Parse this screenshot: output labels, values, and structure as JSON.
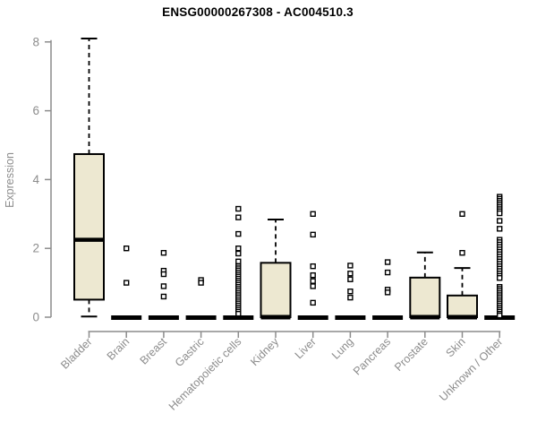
{
  "colors": {
    "box_fill": "#EDE8D1",
    "box_stroke": "#000000",
    "median": "#000000",
    "outlier_fill": "#FFFFFF",
    "outlier_stroke": "#000000",
    "axis_line": "#8C8C8C",
    "tick_label": "#8C8C8C",
    "title_color": "#000000"
  },
  "chart_data": {
    "type": "boxplot",
    "title": "ENSG00000267308 - AC004510.3",
    "xlabel": "",
    "ylabel": "Expression",
    "ylim": [
      0,
      8.2
    ],
    "yticks": [
      0,
      2,
      4,
      6,
      8
    ],
    "grid": false,
    "legend": "none",
    "categories": [
      "Bladder",
      "Brain",
      "Breast",
      "Gastric",
      "Hematopoietic cells",
      "Kidney",
      "Liver",
      "Lung",
      "Pancreas",
      "Prostate",
      "Skin",
      "Unknown / Other"
    ],
    "boxes": [
      {
        "category": "Bladder",
        "whisker_low": 0.02,
        "q1": 0.51,
        "median": 2.25,
        "q3": 4.74,
        "whisker_high": 8.1,
        "outliers": []
      },
      {
        "category": "Brain",
        "whisker_low": 0,
        "q1": 0,
        "median": 0,
        "q3": 0,
        "whisker_high": 0,
        "outliers": [
          2.0,
          1.0
        ]
      },
      {
        "category": "Breast",
        "whisker_low": 0,
        "q1": 0,
        "median": 0,
        "q3": 0,
        "whisker_high": 0,
        "outliers": [
          1.87,
          1.35,
          1.25,
          0.9,
          0.6
        ]
      },
      {
        "category": "Gastric",
        "whisker_low": 0,
        "q1": 0,
        "median": 0,
        "q3": 0,
        "whisker_high": 0,
        "outliers": [
          1.08,
          1.0
        ]
      },
      {
        "category": "Hematopoietic cells",
        "whisker_low": 0,
        "q1": 0,
        "median": 0,
        "q3": 0,
        "whisker_high": 0,
        "outliers": [
          3.15,
          2.9,
          2.42,
          2.0,
          1.85,
          1.62,
          1.48,
          1.42,
          1.36,
          1.3,
          1.24,
          1.18,
          1.12,
          1.06,
          1.0,
          0.94,
          0.88,
          0.82,
          0.76,
          0.7,
          0.64,
          0.58,
          0.52,
          0.46,
          0.4,
          0.34,
          0.28,
          0.22,
          0.16,
          0.1
        ]
      },
      {
        "category": "Kidney",
        "whisker_low": 0,
        "q1": 0,
        "median": 0,
        "q3": 1.58,
        "whisker_high": 2.84,
        "outliers": []
      },
      {
        "category": "Liver",
        "whisker_low": 0,
        "q1": 0,
        "median": 0,
        "q3": 0,
        "whisker_high": 0,
        "outliers": [
          3.0,
          2.4,
          1.48,
          1.22,
          1.05,
          0.9,
          0.42
        ]
      },
      {
        "category": "Lung",
        "whisker_low": 0,
        "q1": 0,
        "median": 0,
        "q3": 0,
        "whisker_high": 0,
        "outliers": [
          1.5,
          1.27,
          1.1,
          0.75,
          0.57
        ]
      },
      {
        "category": "Pancreas",
        "whisker_low": 0,
        "q1": 0,
        "median": 0,
        "q3": 0,
        "whisker_high": 0,
        "outliers": [
          1.6,
          1.3,
          0.8,
          0.72
        ]
      },
      {
        "category": "Prostate",
        "whisker_low": 0,
        "q1": 0,
        "median": 0,
        "q3": 1.15,
        "whisker_high": 1.88,
        "outliers": []
      },
      {
        "category": "Skin",
        "whisker_low": 0,
        "q1": 0,
        "median": 0,
        "q3": 0.63,
        "whisker_high": 1.43,
        "outliers": [
          3.0,
          1.87
        ]
      },
      {
        "category": "Unknown / Other",
        "whisker_low": 0,
        "q1": 0,
        "median": 0,
        "q3": 0,
        "whisker_high": 0,
        "outliers": [
          3.5,
          3.44,
          3.38,
          3.32,
          3.26,
          3.2,
          3.14,
          3.08,
          3.02,
          2.8,
          2.57,
          2.25,
          2.18,
          2.11,
          2.04,
          1.97,
          1.9,
          1.83,
          1.76,
          1.69,
          1.62,
          1.55,
          1.48,
          1.41,
          1.34,
          1.27,
          1.2,
          1.14,
          0.88,
          0.82,
          0.76,
          0.7,
          0.64,
          0.58,
          0.52,
          0.46,
          0.4,
          0.34,
          0.28,
          0.22,
          0.16,
          0.1,
          0.05
        ]
      }
    ]
  }
}
